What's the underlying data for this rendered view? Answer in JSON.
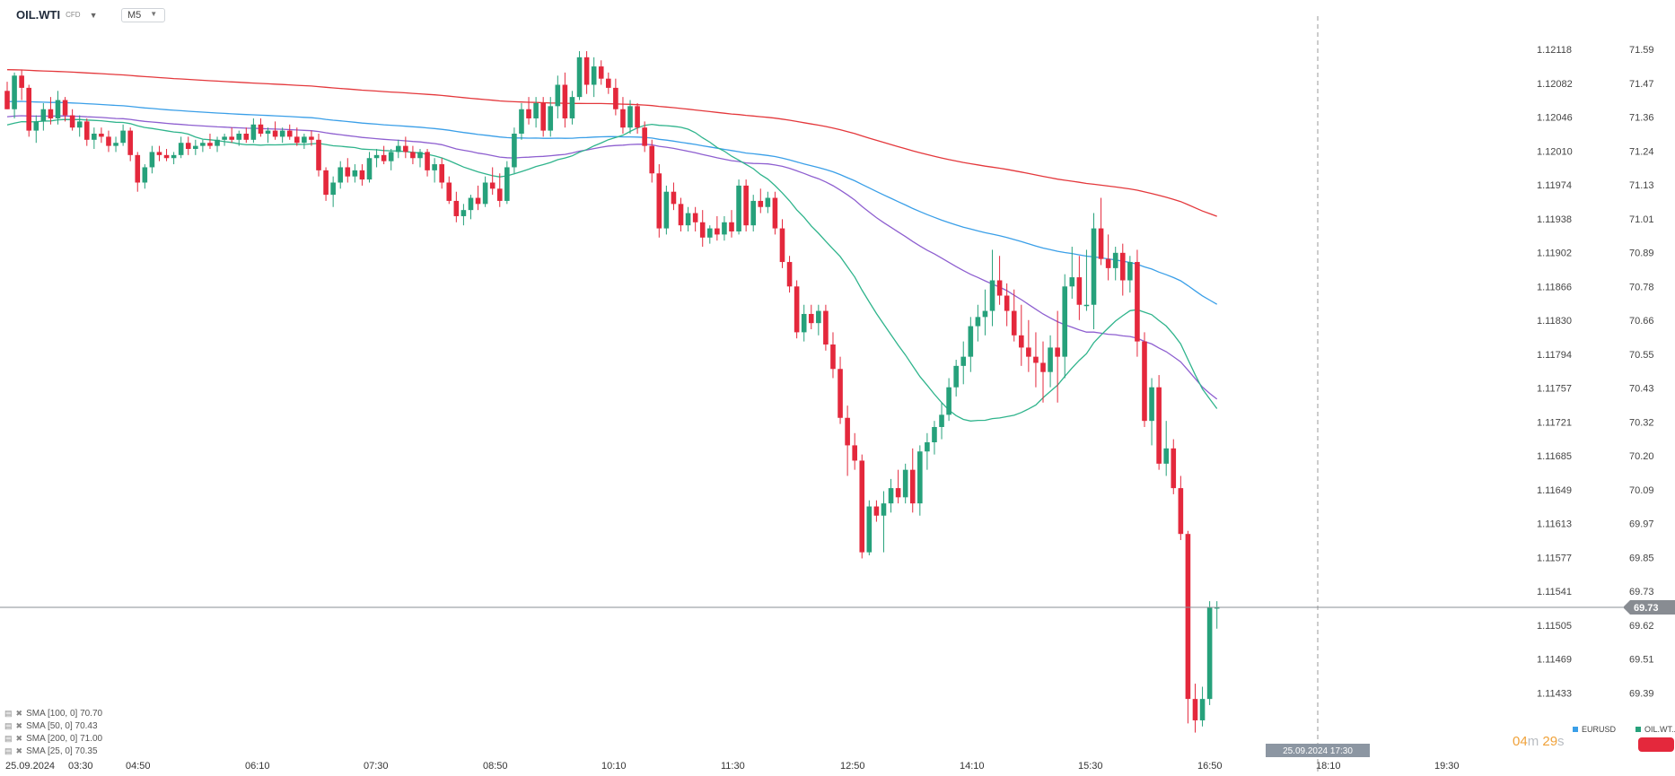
{
  "header": {
    "symbol": "OIL.WTI",
    "symbol_tag": "CFD",
    "caret": "▼",
    "timeframe": "M5",
    "timeframe_caret": "▼"
  },
  "colors": {
    "up": "#26a17b",
    "down": "#e4283c",
    "sma100": "#8e5fd0",
    "sma50": "#2fb48c",
    "sma200": "#e4383c",
    "sma_eur": "#3a9fe8",
    "crosshair": "#999999",
    "last_price_bg": "#888c92"
  },
  "legend": [
    {
      "text": "SMA [100, 0] 70.70"
    },
    {
      "text": "SMA [50, 0] 70.43"
    },
    {
      "text": "SMA [200, 0] 71.00"
    },
    {
      "text": "SMA [25, 0] 70.35"
    }
  ],
  "timer": {
    "minutes": "04",
    "m": "m",
    "seconds": "29",
    "s": "s"
  },
  "symbols": {
    "eurusd": "EURUSD",
    "oil": "OIL.WT.."
  },
  "crosshair_label": "25.09.2024 17:30",
  "last_price": "69.73",
  "chart_data": {
    "type": "candlestick",
    "series": [
      {
        "name": "OIL.WTI",
        "timeframe": "M5"
      }
    ],
    "x_axis": {
      "first_label": "25.09.2024",
      "labels": [
        "03:30",
        "04:50",
        "06:10",
        "07:30",
        "08:50",
        "10:10",
        "11:30",
        "12:50",
        "14:10",
        "15:30",
        "16:50",
        "18:10",
        "19:30"
      ]
    },
    "y_axis_right": [
      "71.59",
      "71.47",
      "71.36",
      "71.24",
      "71.13",
      "71.01",
      "70.89",
      "70.78",
      "70.66",
      "70.55",
      "70.43",
      "70.32",
      "70.20",
      "70.09",
      "69.97",
      "69.85",
      "69.73",
      "69.62",
      "69.51",
      "69.39"
    ],
    "y_axis_left": [
      "1.12118",
      "1.12082",
      "1.12046",
      "1.12010",
      "1.11974",
      "1.11938",
      "1.11902",
      "1.11866",
      "1.11830",
      "1.11794",
      "1.11757",
      "1.11721",
      "1.11685",
      "1.11649",
      "1.11613",
      "1.11577",
      "1.11541",
      "1.11505",
      "1.11469",
      "1.11433"
    ],
    "ylim": [
      69.31,
      71.6
    ],
    "last_price": 69.73,
    "candles": [
      [
        71.42,
        71.45,
        71.36,
        71.36
      ],
      [
        71.36,
        71.48,
        71.33,
        71.47
      ],
      [
        71.47,
        71.49,
        71.39,
        71.43
      ],
      [
        71.43,
        71.44,
        71.27,
        71.29
      ],
      [
        71.29,
        71.34,
        71.25,
        71.32
      ],
      [
        71.32,
        71.38,
        71.29,
        71.36
      ],
      [
        71.36,
        71.4,
        71.31,
        71.33
      ],
      [
        71.33,
        71.42,
        71.31,
        71.39
      ],
      [
        71.39,
        71.4,
        71.32,
        71.34
      ],
      [
        71.34,
        71.36,
        71.29,
        71.3
      ],
      [
        71.3,
        71.34,
        71.27,
        71.32
      ],
      [
        71.32,
        71.33,
        71.24,
        71.26
      ],
      [
        71.26,
        71.3,
        71.23,
        71.28
      ],
      [
        71.28,
        71.3,
        71.25,
        71.27
      ],
      [
        71.27,
        71.29,
        71.22,
        71.24
      ],
      [
        71.24,
        71.27,
        71.22,
        71.25
      ],
      [
        71.25,
        71.31,
        71.24,
        71.29
      ],
      [
        71.29,
        71.3,
        71.19,
        71.21
      ],
      [
        71.21,
        71.22,
        71.09,
        71.12
      ],
      [
        71.12,
        71.18,
        71.1,
        71.17
      ],
      [
        71.17,
        71.24,
        71.15,
        71.22
      ],
      [
        71.22,
        71.24,
        71.19,
        71.21
      ],
      [
        71.21,
        71.23,
        71.19,
        71.2
      ],
      [
        71.2,
        71.22,
        71.18,
        71.21
      ],
      [
        71.21,
        71.27,
        71.2,
        71.25
      ],
      [
        71.25,
        71.27,
        71.21,
        71.23
      ],
      [
        71.23,
        71.26,
        71.21,
        71.24
      ],
      [
        71.24,
        71.26,
        71.22,
        71.25
      ],
      [
        71.25,
        71.28,
        71.23,
        71.24
      ],
      [
        71.24,
        71.27,
        71.22,
        71.26
      ],
      [
        71.26,
        71.28,
        71.24,
        71.27
      ],
      [
        71.27,
        71.3,
        71.25,
        71.26
      ],
      [
        71.26,
        71.29,
        71.24,
        71.28
      ],
      [
        71.28,
        71.3,
        71.25,
        71.26
      ],
      [
        71.26,
        71.33,
        71.25,
        71.31
      ],
      [
        71.31,
        71.33,
        71.27,
        71.28
      ],
      [
        71.28,
        71.3,
        71.25,
        71.29
      ],
      [
        71.29,
        71.32,
        71.26,
        71.27
      ],
      [
        71.27,
        71.3,
        71.25,
        71.29
      ],
      [
        71.29,
        71.31,
        71.26,
        71.27
      ],
      [
        71.27,
        71.3,
        71.24,
        71.25
      ],
      [
        71.25,
        71.28,
        71.23,
        71.27
      ],
      [
        71.27,
        71.29,
        71.24,
        71.26
      ],
      [
        71.26,
        71.28,
        71.14,
        71.16
      ],
      [
        71.16,
        71.17,
        71.06,
        71.08
      ],
      [
        71.08,
        71.14,
        71.04,
        71.12
      ],
      [
        71.12,
        71.19,
        71.1,
        71.17
      ],
      [
        71.17,
        71.2,
        71.12,
        71.14
      ],
      [
        71.14,
        71.18,
        71.12,
        71.16
      ],
      [
        71.16,
        71.18,
        71.11,
        71.13
      ],
      [
        71.13,
        71.22,
        71.12,
        71.2
      ],
      [
        71.2,
        71.23,
        71.17,
        71.21
      ],
      [
        71.21,
        71.24,
        71.18,
        71.19
      ],
      [
        71.19,
        71.23,
        71.16,
        71.22
      ],
      [
        71.22,
        71.26,
        71.2,
        71.24
      ],
      [
        71.24,
        71.27,
        71.2,
        71.22
      ],
      [
        71.22,
        71.24,
        71.18,
        71.2
      ],
      [
        71.2,
        71.23,
        71.17,
        71.22
      ],
      [
        71.22,
        71.23,
        71.14,
        71.16
      ],
      [
        71.16,
        71.2,
        71.12,
        71.18
      ],
      [
        71.18,
        71.2,
        71.1,
        71.12
      ],
      [
        71.12,
        71.14,
        71.05,
        71.06
      ],
      [
        71.06,
        71.09,
        70.99,
        71.01
      ],
      [
        71.01,
        71.05,
        70.98,
        71.03
      ],
      [
        71.03,
        71.08,
        71.0,
        71.07
      ],
      [
        71.07,
        71.11,
        71.03,
        71.05
      ],
      [
        71.05,
        71.14,
        71.04,
        71.12
      ],
      [
        71.12,
        71.17,
        71.08,
        71.1
      ],
      [
        71.1,
        71.15,
        71.04,
        71.06
      ],
      [
        71.06,
        71.19,
        71.05,
        71.17
      ],
      [
        71.17,
        71.3,
        71.15,
        71.28
      ],
      [
        71.28,
        71.38,
        71.26,
        71.36
      ],
      [
        71.36,
        71.4,
        71.31,
        71.33
      ],
      [
        71.33,
        71.4,
        71.3,
        71.38
      ],
      [
        71.38,
        71.4,
        71.27,
        71.29
      ],
      [
        71.29,
        71.4,
        71.27,
        71.37
      ],
      [
        71.37,
        71.47,
        71.33,
        71.44
      ],
      [
        71.44,
        71.48,
        71.3,
        71.33
      ],
      [
        71.33,
        71.42,
        71.31,
        71.4
      ],
      [
        71.4,
        71.55,
        71.39,
        71.53
      ],
      [
        71.53,
        71.55,
        71.41,
        71.44
      ],
      [
        71.44,
        71.53,
        71.4,
        71.5
      ],
      [
        71.5,
        71.52,
        71.44,
        71.46
      ],
      [
        71.46,
        71.48,
        71.41,
        71.43
      ],
      [
        71.43,
        71.46,
        71.34,
        71.36
      ],
      [
        71.36,
        71.4,
        71.28,
        71.3
      ],
      [
        71.3,
        71.39,
        71.28,
        71.37
      ],
      [
        71.37,
        71.38,
        71.28,
        71.3
      ],
      [
        71.3,
        71.32,
        71.22,
        71.24
      ],
      [
        71.24,
        71.26,
        71.12,
        71.15
      ],
      [
        71.15,
        71.18,
        70.94,
        70.97
      ],
      [
        70.97,
        71.11,
        70.95,
        71.09
      ],
      [
        71.09,
        71.12,
        71.03,
        71.05
      ],
      [
        71.05,
        71.07,
        70.96,
        70.98
      ],
      [
        70.98,
        71.04,
        70.96,
        71.02
      ],
      [
        71.02,
        71.04,
        70.96,
        70.99
      ],
      [
        70.99,
        71.03,
        70.91,
        70.94
      ],
      [
        70.94,
        70.98,
        70.92,
        70.97
      ],
      [
        70.97,
        71.01,
        70.93,
        70.95
      ],
      [
        70.95,
        71.01,
        70.93,
        70.99
      ],
      [
        70.99,
        71.03,
        70.94,
        70.96
      ],
      [
        70.96,
        71.13,
        70.95,
        71.11
      ],
      [
        71.11,
        71.13,
        70.96,
        70.98
      ],
      [
        70.98,
        71.08,
        70.96,
        71.06
      ],
      [
        71.06,
        71.1,
        71.02,
        71.04
      ],
      [
        71.04,
        71.09,
        71.02,
        71.07
      ],
      [
        71.07,
        71.09,
        70.95,
        70.97
      ],
      [
        70.97,
        71.0,
        70.84,
        70.86
      ],
      [
        70.86,
        70.88,
        70.76,
        70.78
      ],
      [
        70.78,
        70.8,
        70.61,
        70.63
      ],
      [
        70.63,
        70.72,
        70.6,
        70.69
      ],
      [
        70.69,
        70.72,
        70.64,
        70.66
      ],
      [
        70.66,
        70.72,
        70.62,
        70.7
      ],
      [
        70.7,
        70.72,
        70.57,
        70.59
      ],
      [
        70.59,
        70.63,
        70.48,
        70.51
      ],
      [
        70.51,
        70.55,
        70.33,
        70.35
      ],
      [
        70.35,
        70.39,
        70.16,
        70.26
      ],
      [
        70.26,
        70.3,
        70.18,
        70.21
      ],
      [
        70.21,
        70.23,
        69.89,
        69.91
      ],
      [
        69.91,
        70.08,
        69.9,
        70.06
      ],
      [
        70.06,
        70.08,
        70.01,
        70.03
      ],
      [
        70.03,
        70.11,
        69.91,
        70.07
      ],
      [
        70.07,
        70.15,
        70.04,
        70.12
      ],
      [
        70.12,
        70.18,
        70.07,
        70.09
      ],
      [
        70.09,
        70.2,
        70.07,
        70.18
      ],
      [
        70.18,
        70.25,
        70.04,
        70.07
      ],
      [
        70.07,
        70.26,
        70.03,
        70.24
      ],
      [
        70.24,
        70.3,
        70.18,
        70.27
      ],
      [
        70.27,
        70.34,
        70.23,
        70.32
      ],
      [
        70.32,
        70.4,
        70.28,
        70.36
      ],
      [
        70.36,
        70.48,
        70.34,
        70.45
      ],
      [
        70.45,
        70.54,
        70.42,
        70.52
      ],
      [
        70.52,
        70.6,
        70.46,
        70.55
      ],
      [
        70.55,
        70.68,
        70.5,
        70.65
      ],
      [
        70.65,
        70.72,
        70.6,
        70.68
      ],
      [
        70.68,
        70.77,
        70.62,
        70.7
      ],
      [
        70.7,
        70.9,
        70.65,
        70.8
      ],
      [
        70.8,
        70.88,
        70.72,
        70.75
      ],
      [
        70.75,
        70.79,
        70.65,
        70.7
      ],
      [
        70.7,
        70.77,
        70.6,
        70.62
      ],
      [
        70.62,
        70.72,
        70.52,
        70.58
      ],
      [
        70.58,
        70.67,
        70.5,
        70.55
      ],
      [
        70.55,
        70.63,
        70.45,
        70.53
      ],
      [
        70.53,
        70.6,
        70.4,
        70.5
      ],
      [
        70.5,
        70.62,
        70.45,
        70.58
      ],
      [
        70.58,
        70.7,
        70.4,
        70.55
      ],
      [
        70.55,
        70.82,
        70.48,
        70.78
      ],
      [
        70.78,
        70.91,
        70.74,
        70.81
      ],
      [
        70.81,
        70.88,
        70.67,
        70.72
      ],
      [
        70.72,
        70.9,
        70.7,
        70.72
      ],
      [
        70.72,
        71.02,
        70.64,
        70.97
      ],
      [
        70.97,
        71.07,
        70.85,
        70.87
      ],
      [
        70.87,
        70.95,
        70.8,
        70.84
      ],
      [
        70.84,
        70.91,
        70.8,
        70.89
      ],
      [
        70.89,
        70.92,
        70.75,
        70.8
      ],
      [
        70.8,
        70.88,
        70.76,
        70.86
      ],
      [
        70.86,
        70.9,
        70.55,
        70.6
      ],
      [
        70.6,
        70.63,
        70.32,
        70.34
      ],
      [
        70.34,
        70.48,
        70.26,
        70.45
      ],
      [
        70.45,
        70.49,
        70.18,
        70.2
      ],
      [
        70.2,
        70.34,
        70.16,
        70.25
      ],
      [
        70.25,
        70.28,
        70.1,
        70.12
      ],
      [
        70.12,
        70.16,
        69.95,
        69.97
      ],
      [
        69.97,
        69.98,
        69.35,
        69.43
      ],
      [
        69.43,
        69.48,
        69.32,
        69.36
      ],
      [
        69.36,
        69.47,
        69.34,
        69.43
      ],
      [
        69.43,
        69.75,
        69.41,
        69.73
      ],
      [
        69.73,
        69.75,
        69.66,
        69.73
      ]
    ],
    "sma": [
      {
        "name": "SMA [200, 0]",
        "value": "71.00"
      },
      {
        "name": "SMA [100, 0]",
        "value": "70.70"
      },
      {
        "name": "SMA [50, 0]",
        "value": "70.43"
      },
      {
        "name": "SMA [25, 0]",
        "value": "70.35"
      }
    ]
  }
}
